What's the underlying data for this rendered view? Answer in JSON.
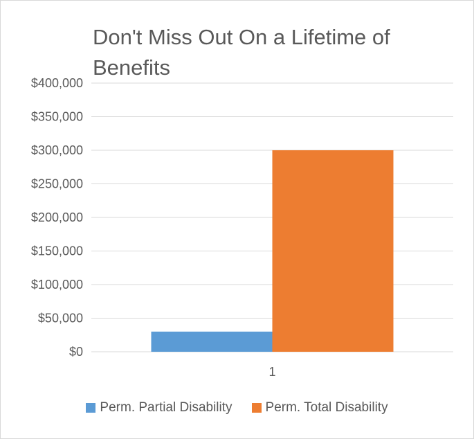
{
  "chart_data": {
    "type": "bar",
    "title": "Don't Miss Out On a Lifetime of Benefits",
    "categories": [
      "1"
    ],
    "series": [
      {
        "name": "Perm. Partial Disability",
        "values": [
          30000
        ],
        "color": "#5b9bd5"
      },
      {
        "name": "Perm. Total Disability",
        "values": [
          300000
        ],
        "color": "#ed7d31"
      }
    ],
    "ylim": [
      0,
      400000
    ],
    "yticks": [
      "$0",
      "$50,000",
      "$100,000",
      "$150,000",
      "$200,000",
      "$250,000",
      "$300,000",
      "$350,000",
      "$400,000"
    ],
    "grid": true,
    "legend_position": "bottom"
  }
}
